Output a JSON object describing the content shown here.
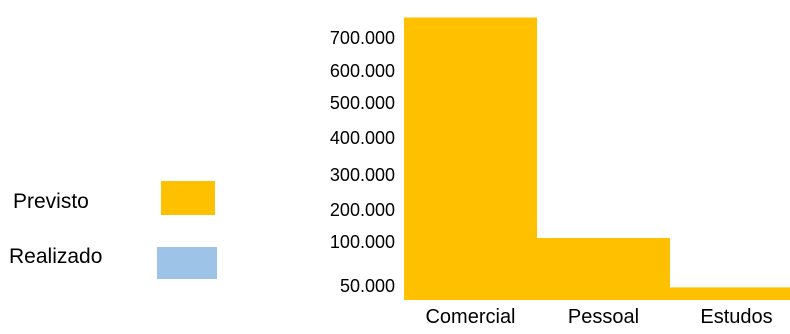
{
  "chart_data": {
    "type": "bar",
    "categories": [
      "Comercial",
      "Pessoal",
      "Estudos"
    ],
    "series": [
      {
        "name": "Previsto",
        "values": [
          750000,
          100000,
          35000
        ],
        "color": "#FFC000"
      },
      {
        "name": "Realizado",
        "values": [
          null,
          null,
          null
        ],
        "color": "#9DC3E6"
      }
    ],
    "y_tick_labels": [
      "50.000",
      "100.000",
      "200.000",
      "300.000",
      "400.000",
      "500.000",
      "600.000",
      "700.000"
    ],
    "y_tick_values": [
      50000,
      100000,
      200000,
      300000,
      400000,
      500000,
      600000,
      700000
    ],
    "y_scale": "non-linear (ticks unevenly spaced, top ticks ~100.000 apart)",
    "grid": false,
    "legend_position": "left",
    "title": "",
    "xlabel": "",
    "ylabel": ""
  }
}
